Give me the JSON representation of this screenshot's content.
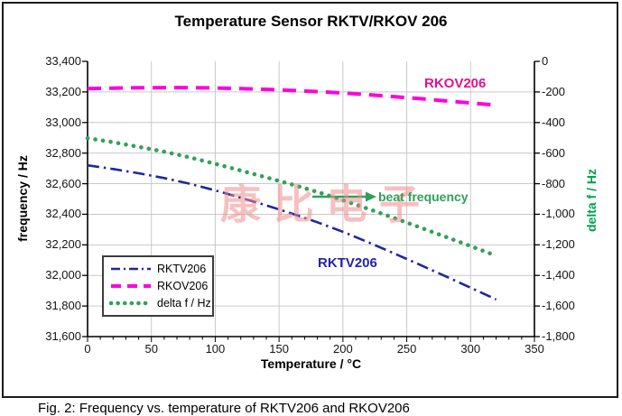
{
  "figure": {
    "caption": "Fig. 2: Frequency vs. temperature of RKTV206 and RKOV206"
  },
  "chart_data": {
    "type": "line",
    "title": "Temperature Sensor RKTV/RKOV 206",
    "xlabel": "Temperature / °C",
    "ylabel_left": "frequency / Hz",
    "ylabel_right": "delta f / Hz",
    "ylabel_right_color": "#00A44F",
    "xlim": [
      0,
      350
    ],
    "ylim_left": [
      31600,
      33400
    ],
    "ylim_right": [
      -1800,
      0
    ],
    "x_major_step": 50,
    "x_minor_step": 10,
    "y_step": 200,
    "grid": true,
    "grid_color": "#C9C9C9",
    "legend_position": "inside-bottom-left",
    "x_ticks": [
      0,
      50,
      100,
      150,
      200,
      250,
      300,
      350
    ],
    "y_ticks_left": [
      33400,
      33200,
      33000,
      32800,
      32600,
      32400,
      32200,
      32000,
      31800,
      31600
    ],
    "y_ticks_right": [
      0,
      -200,
      -400,
      -600,
      -800,
      -1000,
      -1200,
      -1400,
      -1600,
      -1800
    ],
    "x": [
      0,
      20,
      40,
      60,
      80,
      100,
      120,
      140,
      160,
      180,
      200,
      220,
      240,
      260,
      280,
      300,
      320
    ],
    "series": [
      {
        "name": "RKTV206",
        "axis": "left",
        "color": "#23269F",
        "style": "dashdot",
        "values": [
          32720,
          32696,
          32668,
          32637,
          32600,
          32556,
          32508,
          32458,
          32405,
          32348,
          32285,
          32217,
          32145,
          32071,
          31996,
          31920,
          31843
        ]
      },
      {
        "name": "RKOV206",
        "axis": "left",
        "color": "#FF00DC",
        "style": "dashed",
        "values": [
          33222,
          33225,
          33227,
          33228,
          33228,
          33226,
          33222,
          33217,
          33210,
          33202,
          33193,
          33182,
          33169,
          33156,
          33142,
          33128,
          33114
        ]
      },
      {
        "name": "delta f / Hz",
        "axis": "right",
        "color": "#33A05C",
        "style": "dotted",
        "values": [
          -502,
          -529,
          -559,
          -591,
          -628,
          -670,
          -714,
          -759,
          -805,
          -854,
          -908,
          -965,
          -1024,
          -1085,
          -1146,
          -1208,
          -1271
        ]
      }
    ],
    "annotations": [
      {
        "text": "RKOV206",
        "color": "#DD1390"
      },
      {
        "text": "RKTV206",
        "color": "#23269F"
      },
      {
        "text": "beat frequency",
        "color": "#2FA05A",
        "arrow": true
      }
    ],
    "watermark": "康 比 电 子"
  }
}
